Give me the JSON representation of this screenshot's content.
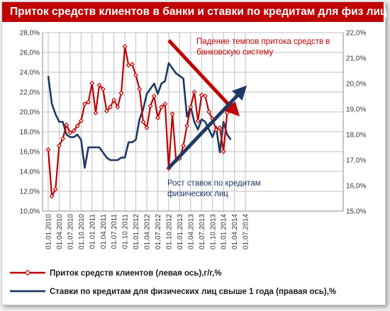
{
  "title": "Приток средств клиентов в банки и ставки по кредитам для физ лиц",
  "colors": {
    "title_bg": "#c00000",
    "inflow": "#c00000",
    "rates": "#1f3864",
    "annotation_red": "#c00000",
    "annotation_blue": "#1f3864"
  },
  "annotations": {
    "red_line1": "Падение темпов притока средств в",
    "red_line2": "банковскую систему",
    "blue_line1": "Рост ставок по кредитам",
    "blue_line2": "физических лиц"
  },
  "chart_data": {
    "type": "line",
    "title": "Приток средств клиентов в банки и ставки по кредитам для физ лиц",
    "x_tick_labels": [
      "01.01.2010",
      "01.04.2010",
      "01.07.2010",
      "01.10.2010",
      "01.01.2011",
      "01.04.2011",
      "01.07.2011",
      "01.10.2011",
      "01.01.2012",
      "01.04.2012",
      "01.07.2012",
      "01.10.2012",
      "01.01.2013",
      "01.04.2013",
      "01.07.2013",
      "01.10.2013",
      "01.01.2014",
      "01.04.2014",
      "01.07.2014"
    ],
    "left_axis": {
      "ylim": [
        10,
        28
      ],
      "ticks": [
        "10,0%",
        "12,0%",
        "14,0%",
        "16,0%",
        "18,0%",
        "20,0%",
        "22,0%",
        "24,0%",
        "26,0%",
        "28,0%"
      ]
    },
    "right_axis": {
      "ylim": [
        15,
        22
      ],
      "ticks": [
        "15,0%",
        "16,0%",
        "17,0%",
        "18,0%",
        "19,0%",
        "20,0%",
        "21,0%",
        "22,0%"
      ]
    },
    "grid": true,
    "legend_position": "bottom",
    "series": [
      {
        "name": "Приток средств клиентов (левая ось),г/г,%",
        "axis": "left",
        "marker": "diamond",
        "points": [
          [
            "2010-01",
            16.2
          ],
          [
            "2010-02",
            11.5
          ],
          [
            "2010-03",
            12.2
          ],
          [
            "2010-04",
            16.6
          ],
          [
            "2010-05",
            17.3
          ],
          [
            "2010-06",
            18.7
          ],
          [
            "2010-07",
            17.9
          ],
          [
            "2010-08",
            18.1
          ],
          [
            "2010-09",
            18.6
          ],
          [
            "2010-10",
            19.1
          ],
          [
            "2010-11",
            20.8
          ],
          [
            "2010-12",
            21.0
          ],
          [
            "2011-01",
            22.9
          ],
          [
            "2011-02",
            19.9
          ],
          [
            "2011-03",
            22.7
          ],
          [
            "2011-04",
            22.3
          ],
          [
            "2011-05",
            20.1
          ],
          [
            "2011-06",
            20.5
          ],
          [
            "2011-07",
            21.2
          ],
          [
            "2011-08",
            20.5
          ],
          [
            "2011-09",
            21.9
          ],
          [
            "2011-10",
            26.6
          ],
          [
            "2011-11",
            24.7
          ],
          [
            "2011-12",
            24.8
          ],
          [
            "2012-01",
            23.7
          ],
          [
            "2012-02",
            22.3
          ],
          [
            "2012-03",
            19.0
          ],
          [
            "2012-04",
            18.4
          ],
          [
            "2012-05",
            20.6
          ],
          [
            "2012-06",
            21.6
          ],
          [
            "2012-07",
            19.4
          ],
          [
            "2012-08",
            20.5
          ],
          [
            "2012-09",
            20.8
          ],
          [
            "2012-10",
            14.3
          ],
          [
            "2012-11",
            19.8
          ],
          [
            "2012-12",
            15.1
          ],
          [
            "2013-01",
            15.3
          ],
          [
            "2013-02",
            16.6
          ],
          [
            "2013-03",
            18.6
          ],
          [
            "2013-04",
            20.5
          ],
          [
            "2013-05",
            22.0
          ],
          [
            "2013-06",
            19.1
          ],
          [
            "2013-07",
            21.7
          ],
          [
            "2013-08",
            21.6
          ],
          [
            "2013-09",
            20.0
          ],
          [
            "2013-10",
            19.3
          ],
          [
            "2013-11",
            18.2
          ],
          [
            "2013-12",
            18.4
          ],
          [
            "2014-01",
            16.0
          ],
          [
            "2014-02",
            19.9
          ],
          [
            "2014-03",
            20.9
          ]
        ]
      },
      {
        "name": "Ставки по кредитам для физических лиц свыше 1 года (правая ось),%",
        "axis": "right",
        "marker": "none",
        "points": [
          [
            "2010-01",
            20.3
          ],
          [
            "2010-02",
            19.2
          ],
          [
            "2010-03",
            18.8
          ],
          [
            "2010-04",
            18.5
          ],
          [
            "2010-05",
            18.5
          ],
          [
            "2010-06",
            18.0
          ],
          [
            "2010-07",
            17.9
          ],
          [
            "2010-08",
            17.9
          ],
          [
            "2010-09",
            18.0
          ],
          [
            "2010-10",
            17.8
          ],
          [
            "2010-11",
            16.7
          ],
          [
            "2010-12",
            17.5
          ],
          [
            "2011-01",
            17.5
          ],
          [
            "2011-02",
            17.5
          ],
          [
            "2011-03",
            17.5
          ],
          [
            "2011-04",
            17.3
          ],
          [
            "2011-05",
            17.1
          ],
          [
            "2011-06",
            17.0
          ],
          [
            "2011-07",
            17.0
          ],
          [
            "2011-08",
            17.0
          ],
          [
            "2011-09",
            17.1
          ],
          [
            "2011-10",
            17.1
          ],
          [
            "2011-11",
            17.7
          ],
          [
            "2011-12",
            17.7
          ],
          [
            "2012-01",
            17.8
          ],
          [
            "2012-02",
            18.6
          ],
          [
            "2012-03",
            19.0
          ],
          [
            "2012-04",
            19.6
          ],
          [
            "2012-05",
            19.8
          ],
          [
            "2012-06",
            20.0
          ],
          [
            "2012-07",
            19.6
          ],
          [
            "2012-08",
            20.0
          ],
          [
            "2012-09",
            20.1
          ],
          [
            "2012-10",
            20.8
          ],
          [
            "2012-11",
            20.6
          ],
          [
            "2012-12",
            20.4
          ],
          [
            "2013-01",
            20.3
          ],
          [
            "2013-02",
            20.2
          ],
          [
            "2013-03",
            18.7
          ],
          [
            "2013-04",
            19.1
          ],
          [
            "2013-05",
            18.5
          ],
          [
            "2013-06",
            18.2
          ],
          [
            "2013-07",
            18.6
          ],
          [
            "2013-08",
            18.5
          ],
          [
            "2013-09",
            18.2
          ],
          [
            "2013-10",
            17.9
          ],
          [
            "2013-11",
            18.3
          ],
          [
            "2013-12",
            17.3
          ],
          [
            "2014-01",
            18.5
          ],
          [
            "2014-02",
            18.0
          ],
          [
            "2014-03",
            17.8
          ]
        ]
      }
    ]
  }
}
